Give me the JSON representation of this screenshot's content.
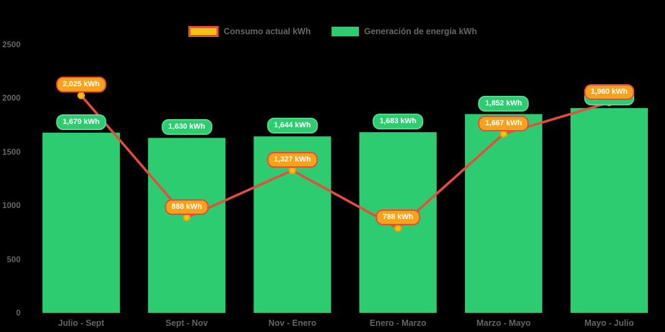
{
  "legend": {
    "items": [
      {
        "id": "consumption",
        "label": "Consumo actual kWh"
      },
      {
        "id": "generation",
        "label": "Generación de energía kWh"
      }
    ]
  },
  "colors": {
    "background": "#000000",
    "bar_green": "#2ecc71",
    "line_red": "#e84c3d",
    "dot_fill": "#f5c211",
    "dot_ring": "#f39c12",
    "pill_green_bg": "#2ecc71",
    "pill_orange_bg": "#f6a21b",
    "pill_orange_border": "#e84c3d",
    "legend_swatch_yellow": "#f1c40f",
    "axis_text": "#666666"
  },
  "chart_data": {
    "type": "bar",
    "title": "",
    "xlabel": "",
    "ylabel": "",
    "unit": "kWh",
    "categories": [
      "Julio - Sept",
      "Sept - Nov",
      "Nov - Enero",
      "Enero - Marzo",
      "Marzo - Mayo",
      "Mayo - Julio"
    ],
    "series": [
      {
        "name": "Generación de energía kWh",
        "type": "bar",
        "color": "#2ecc71",
        "values": [
          1679,
          1630,
          1644,
          1683,
          1852,
          1908
        ],
        "labels": [
          "1,679 kWh",
          "1,630 kWh",
          "1,644 kWh",
          "1,683 kWh",
          "1,852 kWh",
          "1,908 kWh"
        ]
      },
      {
        "name": "Consumo actual kWh",
        "type": "line",
        "color": "#e84c3d",
        "values": [
          2025,
          888,
          1327,
          788,
          1667,
          1960
        ],
        "labels": [
          "2,025 kWh",
          "888 kWh",
          "1,327 kWh",
          "788 kWh",
          "1,667 kWh",
          "1,960 kWh"
        ]
      }
    ],
    "ylim": [
      0,
      2500
    ],
    "yticks": [
      0,
      500,
      1000,
      1500,
      2000,
      2500
    ],
    "ytick_labels": [
      "0",
      "500",
      "1000",
      "1500",
      "2000",
      "2500"
    ],
    "grid": false,
    "legend_position": "top-center"
  }
}
